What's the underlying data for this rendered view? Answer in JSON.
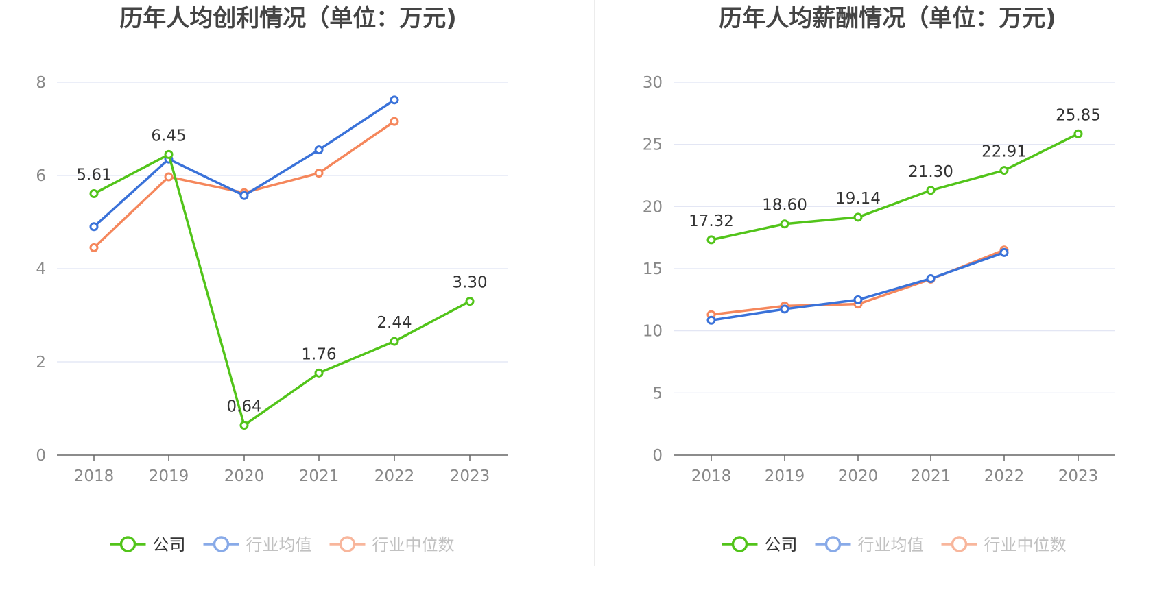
{
  "colors": {
    "company": "#52c41a",
    "avg": "#3a72d9",
    "median": "#f5875c",
    "grid": "#dfe3f3",
    "axis": "#666666"
  },
  "legend": {
    "company": "公司",
    "avg": "行业均值",
    "median": "行业中位数"
  },
  "chart_data": [
    {
      "type": "line",
      "title": "历年人均创利情况（单位：万元)",
      "categories": [
        "2018",
        "2019",
        "2020",
        "2021",
        "2022",
        "2023"
      ],
      "y_ticks": [
        "0",
        "2",
        "4",
        "6",
        "8"
      ],
      "ylim": [
        0,
        8
      ],
      "grid": true,
      "legend_position": "bottom",
      "series": [
        {
          "key": "company",
          "name": "公司",
          "values": [
            5.61,
            6.45,
            0.64,
            1.76,
            2.44,
            3.3
          ],
          "labels": [
            "5.61",
            "6.45",
            "0.64",
            "1.76",
            "2.44",
            "3.30"
          ]
        },
        {
          "key": "avg",
          "name": "行业均值",
          "values": [
            4.9,
            6.35,
            5.57,
            6.55,
            7.62,
            null
          ]
        },
        {
          "key": "median",
          "name": "行业中位数",
          "values": [
            4.45,
            5.97,
            5.63,
            6.05,
            7.16,
            null
          ]
        }
      ]
    },
    {
      "type": "line",
      "title": "历年人均薪酬情况（单位：万元)",
      "categories": [
        "2018",
        "2019",
        "2020",
        "2021",
        "2022",
        "2023"
      ],
      "y_ticks": [
        "0",
        "5",
        "10",
        "15",
        "20",
        "25",
        "30"
      ],
      "ylim": [
        0,
        30
      ],
      "grid": true,
      "legend_position": "bottom",
      "series": [
        {
          "key": "company",
          "name": "公司",
          "values": [
            17.32,
            18.6,
            19.14,
            21.3,
            22.91,
            25.85
          ],
          "labels": [
            "17.32",
            "18.60",
            "19.14",
            "21.30",
            "22.91",
            "25.85"
          ]
        },
        {
          "key": "avg",
          "name": "行业均值",
          "values": [
            10.85,
            11.75,
            12.5,
            14.2,
            16.3,
            null
          ]
        },
        {
          "key": "median",
          "name": "行业中位数",
          "values": [
            11.3,
            12.0,
            12.15,
            14.15,
            16.5,
            null
          ]
        }
      ]
    }
  ]
}
